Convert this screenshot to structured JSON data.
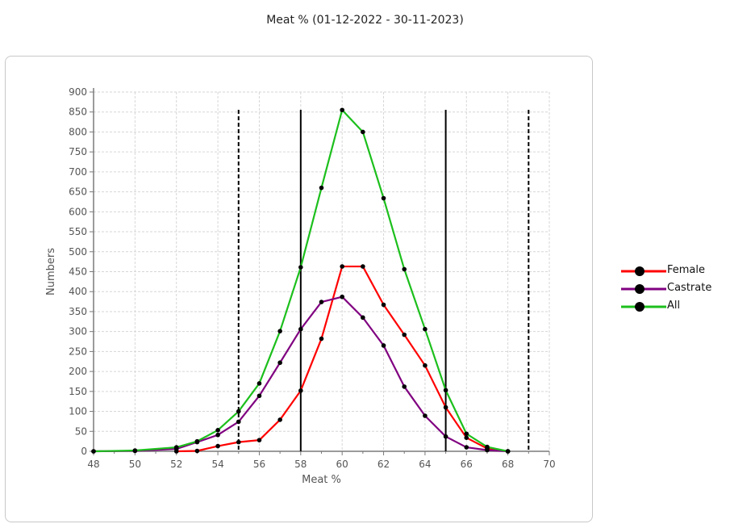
{
  "chart_data": {
    "type": "line",
    "title": "Meat % (01-12-2022 - 30-11-2023)",
    "xlabel": "Meat %",
    "ylabel": "Numbers",
    "xlim": [
      48,
      70
    ],
    "ylim": [
      0,
      900
    ],
    "x_ticks": [
      48,
      50,
      52,
      54,
      56,
      58,
      60,
      62,
      64,
      66,
      68,
      70
    ],
    "y_ticks": [
      0,
      50,
      100,
      150,
      200,
      250,
      300,
      350,
      400,
      450,
      500,
      550,
      600,
      650,
      700,
      750,
      800,
      850,
      900
    ],
    "grid": true,
    "legend_position": "right",
    "series": [
      {
        "name": "Female",
        "color": "#ff0000",
        "x": [
          52,
          53,
          54,
          55,
          56,
          57,
          58,
          59,
          60,
          61,
          62,
          63,
          64,
          65,
          66,
          67,
          68
        ],
        "y": [
          0,
          1,
          13,
          23,
          28,
          79,
          152,
          282,
          463,
          463,
          367,
          292,
          215,
          110,
          34,
          7,
          0
        ]
      },
      {
        "name": "Castrate",
        "color": "#800080",
        "x": [
          48,
          50,
          52,
          53,
          54,
          55,
          56,
          57,
          58,
          59,
          60,
          61,
          62,
          63,
          64,
          65,
          66,
          67,
          68
        ],
        "y": [
          0,
          1,
          6,
          23,
          41,
          74,
          139,
          222,
          306,
          374,
          387,
          335,
          265,
          162,
          89,
          37,
          10,
          3,
          0
        ]
      },
      {
        "name": "All",
        "color": "#1cbf1c",
        "x": [
          48,
          50,
          52,
          53,
          54,
          55,
          56,
          57,
          58,
          59,
          60,
          61,
          62,
          63,
          64,
          65,
          66,
          67,
          68
        ],
        "y": [
          0,
          2,
          10,
          25,
          53,
          100,
          170,
          301,
          461,
          660,
          855,
          800,
          634,
          456,
          306,
          153,
          44,
          11,
          0
        ]
      }
    ],
    "reference_lines": [
      {
        "x": 55,
        "style": "dashed",
        "color": "#000000"
      },
      {
        "x": 58,
        "style": "solid",
        "color": "#000000"
      },
      {
        "x": 65,
        "style": "solid",
        "color": "#000000"
      },
      {
        "x": 69,
        "style": "dashed",
        "color": "#000000"
      }
    ]
  }
}
